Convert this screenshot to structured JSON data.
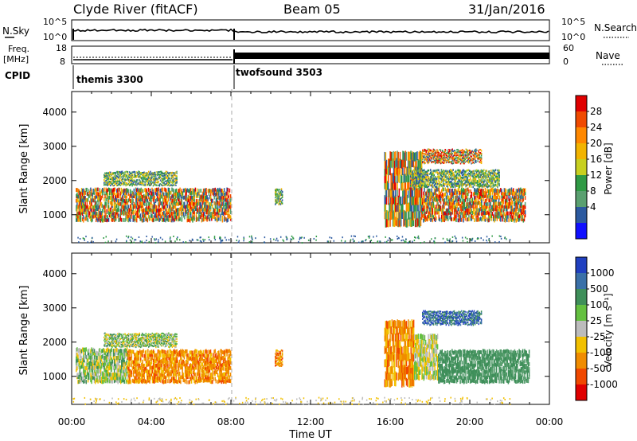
{
  "header": {
    "station": "Clyde River (fitACF)",
    "beam": "Beam 05",
    "date": "31/Jan/2016"
  },
  "aux": {
    "nsky_label": "N.Sky",
    "nsky_ticks": [
      "10^5",
      "10^0"
    ],
    "nsearch_label": "N.Search",
    "nsearch_ticks": [
      "10^5",
      "10^0"
    ],
    "freq_label_1": "Freq.",
    "freq_label_2": "[MHz]",
    "freq_ticks": [
      "18",
      "8"
    ],
    "nave_label": "Nave",
    "nave_ticks": [
      "60",
      "0"
    ],
    "cpid_label": "CPID",
    "cpid_modes": [
      {
        "name": "themis 3300",
        "start_hour": 0
      },
      {
        "name": "twofsound 3503",
        "start_hour": 8
      }
    ]
  },
  "chart_data": [
    {
      "type": "heatmap",
      "name": "power",
      "ylabel": "Slant Range [km]",
      "xlabel": "",
      "xlim_hours": [
        0,
        24
      ],
      "ylim_km": [
        180,
        4600
      ],
      "yticks": [
        1000,
        2000,
        3000,
        4000
      ],
      "colorbar": {
        "label": "Power [dB]",
        "ticks": [
          "28",
          "24",
          "20",
          "16",
          "12",
          "8",
          "4"
        ],
        "colors": [
          "#e00000",
          "#f04a00",
          "#ff8800",
          "#f2b400",
          "#c8d020",
          "#2f9a45",
          "#5aa070",
          "#2c5aa0",
          "#1010ff"
        ]
      },
      "scatter_regions": [
        {
          "t0": 0.2,
          "t1": 8.0,
          "r0": 800,
          "r1": 1750,
          "level": "high"
        },
        {
          "t0": 1.6,
          "t1": 5.3,
          "r0": 1850,
          "r1": 2250,
          "level": "mid"
        },
        {
          "t0": 10.2,
          "t1": 10.6,
          "r0": 1300,
          "r1": 1750,
          "level": "mid"
        },
        {
          "t0": 15.7,
          "t1": 17.6,
          "r0": 650,
          "r1": 2800,
          "level": "high"
        },
        {
          "t0": 17.6,
          "t1": 22.8,
          "r0": 800,
          "r1": 1750,
          "level": "high"
        },
        {
          "t0": 17.6,
          "t1": 20.6,
          "r0": 2500,
          "r1": 2900,
          "level": "high"
        },
        {
          "t0": 17.0,
          "t1": 21.5,
          "r0": 1800,
          "r1": 2300,
          "level": "mid"
        }
      ]
    },
    {
      "type": "heatmap",
      "name": "velocity",
      "ylabel": "Slant Range [km]",
      "xlabel": "Time UT",
      "xlim_hours": [
        0,
        24
      ],
      "ylim_km": [
        180,
        4600
      ],
      "yticks": [
        1000,
        2000,
        3000,
        4000
      ],
      "xticks": [
        "00:00",
        "04:00",
        "08:00",
        "12:00",
        "16:00",
        "20:00",
        "00:00"
      ],
      "colorbar": {
        "label": "Velocity [m s⁻¹]",
        "ticks": [
          "1000",
          "500",
          "100",
          "25",
          "-25",
          "-100",
          "-500",
          "-1000"
        ],
        "colors": [
          "#2040c0",
          "#3a70a8",
          "#3f8f5a",
          "#64c040",
          "#bcbcbc",
          "#f2c000",
          "#f08c00",
          "#f04800",
          "#e00000"
        ]
      },
      "scatter_regions": [
        {
          "t0": 0.2,
          "t1": 2.8,
          "r0": 800,
          "r1": 1800,
          "level": "green"
        },
        {
          "t0": 2.8,
          "t1": 8.0,
          "r0": 800,
          "r1": 1750,
          "level": "orange"
        },
        {
          "t0": 1.6,
          "t1": 5.3,
          "r0": 1850,
          "r1": 2250,
          "level": "green"
        },
        {
          "t0": 10.2,
          "t1": 10.6,
          "r0": 1300,
          "r1": 1750,
          "level": "orange"
        },
        {
          "t0": 15.7,
          "t1": 17.2,
          "r0": 700,
          "r1": 2600,
          "level": "orange"
        },
        {
          "t0": 17.2,
          "t1": 18.4,
          "r0": 900,
          "r1": 2200,
          "level": "lightgreen"
        },
        {
          "t0": 18.4,
          "t1": 23.0,
          "r0": 800,
          "r1": 1750,
          "level": "teal"
        },
        {
          "t0": 17.6,
          "t1": 20.6,
          "r0": 2500,
          "r1": 2900,
          "level": "blue"
        }
      ]
    }
  ]
}
